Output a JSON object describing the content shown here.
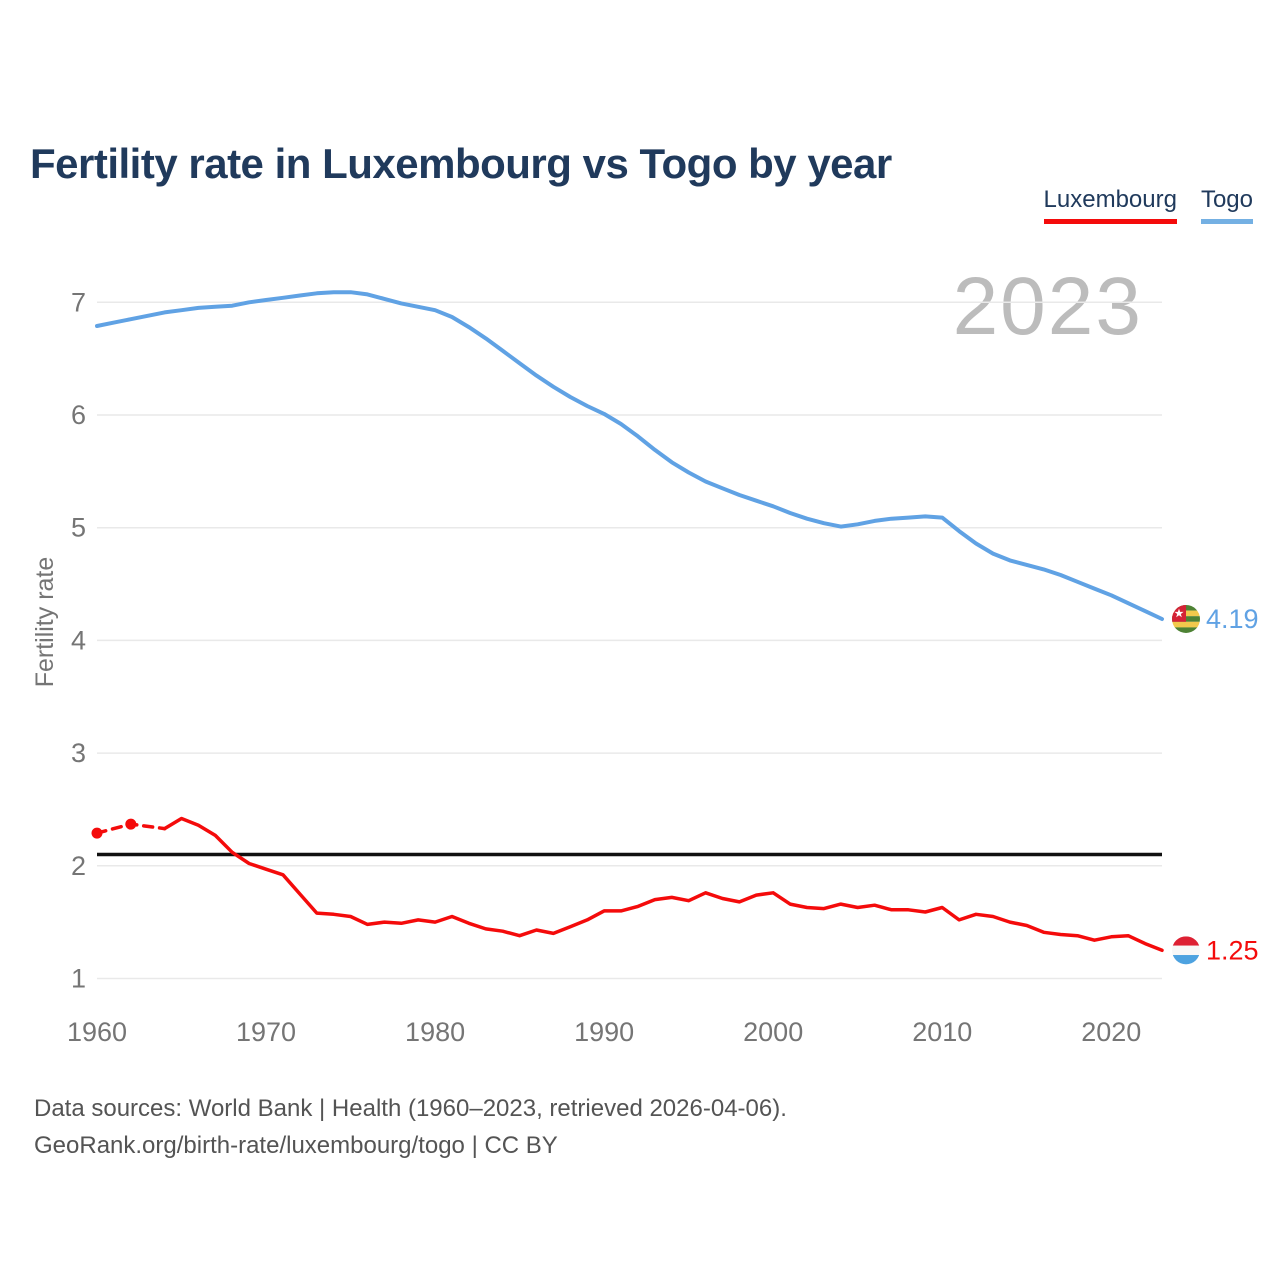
{
  "title": "Fertility rate in Luxembourg vs Togo by year",
  "legend": {
    "items": [
      {
        "label": "Luxembourg",
        "underline_color": "#f40b0b"
      },
      {
        "label": "Togo",
        "underline_color": "#74b0e3"
      }
    ]
  },
  "watermark_year": "2023",
  "footer": {
    "sources_line": "Data sources: World Bank | Health (1960–2023, retrieved 2026-04-06).",
    "url_line": "GeoRank.org/birth-rate/luxembourg/togo | CC BY"
  },
  "colors": {
    "title_text": "#203a5c",
    "axis_text": "#757575",
    "gridline": "#e9e9e9",
    "watermark": "#bcbcbc",
    "reference_line": "#111111",
    "footer_text": "#545454"
  },
  "chart_data": {
    "type": "line",
    "title": "Fertility rate in Luxembourg vs Togo by year",
    "xlabel": "",
    "ylabel": "Fertility rate",
    "x_ticks": [
      1960,
      1970,
      1980,
      1990,
      2000,
      2010,
      2020
    ],
    "y_ticks": [
      1,
      2,
      3,
      4,
      5,
      6,
      7
    ],
    "xlim": [
      1960,
      2023
    ],
    "ylim": [
      1,
      7.3
    ],
    "grid": "horizontal",
    "legend_position": "top-right",
    "reference_line": {
      "value": 2.1,
      "color": "#111111",
      "meaning": "replacement fertility level"
    },
    "years": [
      1960,
      1961,
      1962,
      1963,
      1964,
      1965,
      1966,
      1967,
      1968,
      1969,
      1970,
      1971,
      1972,
      1973,
      1974,
      1975,
      1976,
      1977,
      1978,
      1979,
      1980,
      1981,
      1982,
      1983,
      1984,
      1985,
      1986,
      1987,
      1988,
      1989,
      1990,
      1991,
      1992,
      1993,
      1994,
      1995,
      1996,
      1997,
      1998,
      1999,
      2000,
      2001,
      2002,
      2003,
      2004,
      2005,
      2006,
      2007,
      2008,
      2009,
      2010,
      2011,
      2012,
      2013,
      2014,
      2015,
      2016,
      2017,
      2018,
      2019,
      2020,
      2021,
      2022,
      2023
    ],
    "series": [
      {
        "name": "Togo",
        "color": "#60a2e4",
        "line_width": 4,
        "end_label": "4.19",
        "flag": "togo-flag",
        "values": [
          6.79,
          6.82,
          6.85,
          6.88,
          6.91,
          6.93,
          6.95,
          6.96,
          6.97,
          7.0,
          7.02,
          7.04,
          7.06,
          7.08,
          7.09,
          7.09,
          7.07,
          7.03,
          6.99,
          6.96,
          6.93,
          6.87,
          6.78,
          6.68,
          6.57,
          6.46,
          6.35,
          6.25,
          6.16,
          6.08,
          6.01,
          5.92,
          5.81,
          5.69,
          5.58,
          5.49,
          5.41,
          5.35,
          5.29,
          5.24,
          5.19,
          5.13,
          5.08,
          5.04,
          5.01,
          5.03,
          5.06,
          5.08,
          5.09,
          5.1,
          5.09,
          4.97,
          4.86,
          4.77,
          4.71,
          4.67,
          4.63,
          4.58,
          4.52,
          4.46,
          4.4,
          4.33,
          4.26,
          4.19
        ]
      },
      {
        "name": "Luxembourg",
        "color": "#f40b0b",
        "line_width": 3.5,
        "end_label": "1.25",
        "flag": "luxembourg-flag",
        "dashed_until_year": 1964,
        "marker_years": [
          1960,
          1962
        ],
        "values": [
          2.29,
          2.33,
          2.37,
          2.35,
          2.33,
          2.42,
          2.36,
          2.27,
          2.12,
          2.02,
          1.97,
          1.92,
          1.75,
          1.58,
          1.57,
          1.55,
          1.48,
          1.5,
          1.49,
          1.52,
          1.5,
          1.55,
          1.49,
          1.44,
          1.42,
          1.38,
          1.43,
          1.4,
          1.46,
          1.52,
          1.6,
          1.6,
          1.64,
          1.7,
          1.72,
          1.69,
          1.76,
          1.71,
          1.68,
          1.74,
          1.76,
          1.66,
          1.63,
          1.62,
          1.66,
          1.63,
          1.65,
          1.61,
          1.61,
          1.59,
          1.63,
          1.52,
          1.57,
          1.55,
          1.5,
          1.47,
          1.41,
          1.39,
          1.38,
          1.34,
          1.37,
          1.38,
          1.31,
          1.25
        ]
      }
    ]
  }
}
